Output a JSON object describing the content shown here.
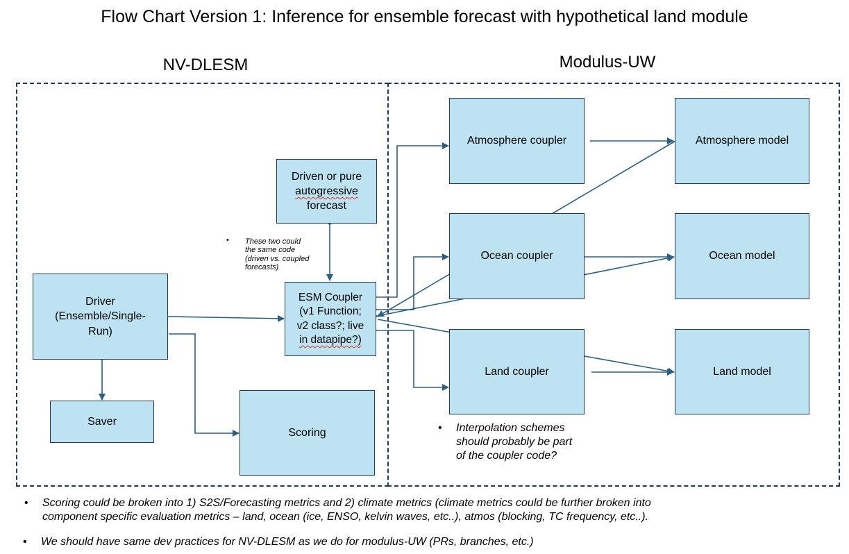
{
  "title": "Flow Chart Version 1: Inference for ensemble forecast with hypothetical land module",
  "regions": {
    "left_label": "NV-DLESM",
    "right_label": "Modulus-UW"
  },
  "nodes": {
    "driver": [
      "Driver",
      "(Ensemble/Single-",
      "Run)"
    ],
    "saver": "Saver",
    "scoring": "Scoring",
    "driven": [
      "Driven or pure",
      "autogressive",
      "forecast"
    ],
    "esm_coupler": [
      "ESM Coupler",
      "(v1 Function;",
      "v2 class?; live",
      "in datapipe?)"
    ],
    "atmosphere_coupler": "Atmosphere coupler",
    "ocean_coupler": "Ocean coupler",
    "land_coupler": "Land coupler",
    "atmosphere_model": "Atmosphere model",
    "ocean_model": "Ocean model",
    "land_model": "Land model"
  },
  "notes": {
    "code_note": [
      "These two could",
      "the same code",
      "(driven vs. coupled",
      "forecasts)"
    ],
    "interpolation": [
      "Interpolation schemes",
      "should probably be part",
      "of the coupler code?"
    ],
    "bullet_scoring": [
      "Scoring could be broken into 1) S2S/Forecasting metrics  and 2) climate metrics (climate metrics could be further broken into",
      "component specific evaluation metrics – land, ocean (ice, ENSO, kelvin waves, etc..), atmos (blocking, TC frequency, etc..)."
    ],
    "bullet_dev": "We should have same dev practices for NV-DLESM as we do for modulus-UW (PRs, branches, etc.)"
  },
  "bullet_glyph": "•",
  "colors": {
    "box_fill": "#bde3f3",
    "line": "#1f3a52",
    "arrow": "#2b5f86"
  }
}
